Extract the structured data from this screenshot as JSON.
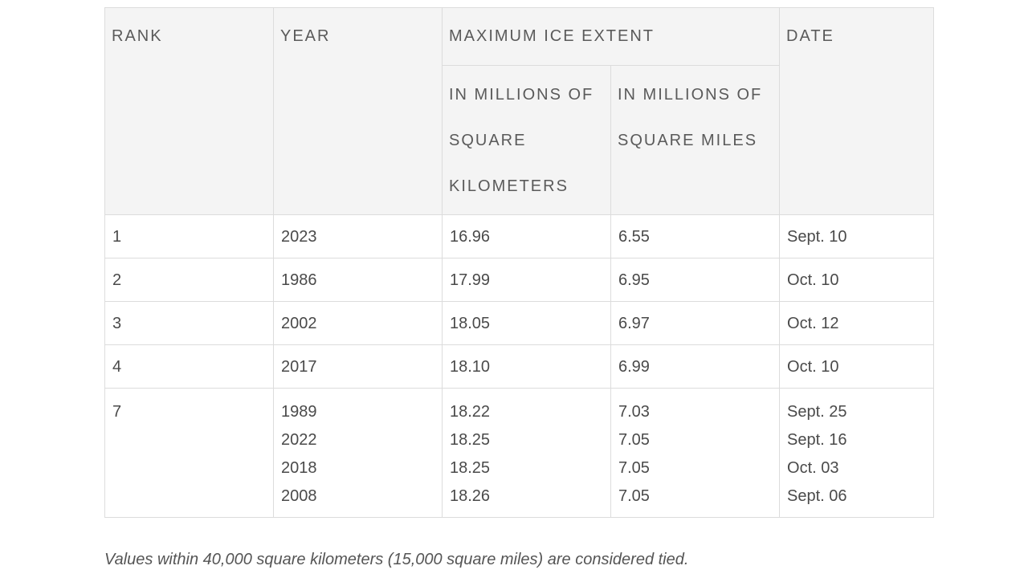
{
  "table": {
    "headers": {
      "rank": "RANK",
      "year": "YEAR",
      "extent": "MAXIMUM ICE EXTENT",
      "km": "IN MILLIONS OF SQUARE KILOMETERS",
      "mi": "IN MILLIONS OF SQUARE MILES",
      "date": "DATE"
    },
    "rows": [
      {
        "rank": "1",
        "year": "2023",
        "km": "16.96",
        "mi": "6.55",
        "date": "Sept. 10"
      },
      {
        "rank": "2",
        "year": "1986",
        "km": "17.99",
        "mi": "6.95",
        "date": "Oct. 10"
      },
      {
        "rank": "3",
        "year": "2002",
        "km": "18.05",
        "mi": "6.97",
        "date": "Oct. 12"
      },
      {
        "rank": "4",
        "year": "2017",
        "km": "18.10",
        "mi": "6.99",
        "date": "Oct. 10"
      }
    ],
    "group": {
      "rank": "7",
      "entries": [
        {
          "year": "1989",
          "km": "18.22",
          "mi": "7.03",
          "date": "Sept. 25"
        },
        {
          "year": "2022",
          "km": "18.25",
          "mi": "7.05",
          "date": "Sept. 16"
        },
        {
          "year": "2018",
          "km": "18.25",
          "mi": "7.05",
          "date": "Oct. 03"
        },
        {
          "year": "2008",
          "km": "18.26",
          "mi": "7.05",
          "date": "Sept. 06"
        }
      ]
    }
  },
  "footnote": "Values within 40,000 square kilometers (15,000 square miles) are considered tied."
}
